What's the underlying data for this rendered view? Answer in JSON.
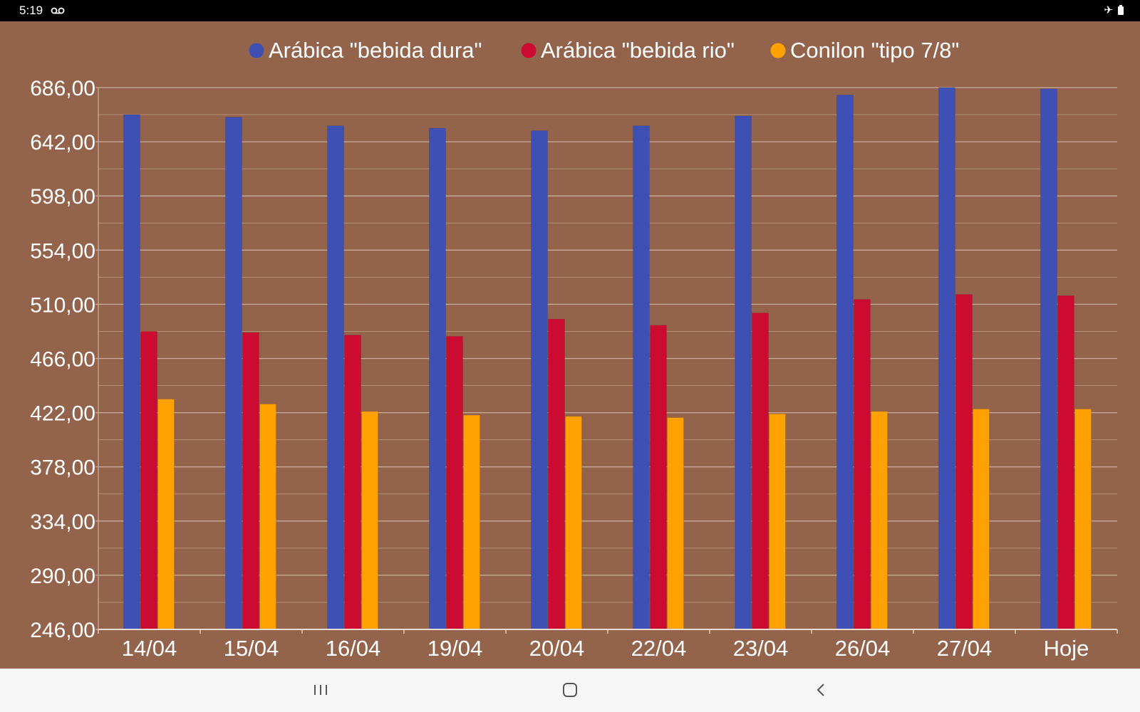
{
  "status_bar": {
    "time": "5:19",
    "icons": [
      "voicemail-icon",
      "airplane-icon",
      "battery-icon"
    ]
  },
  "nav_bar": {
    "buttons": [
      "recents-icon",
      "home-icon",
      "back-icon"
    ]
  },
  "colors": {
    "background": "#93644b",
    "gridline": "#c9ab98",
    "axis_text": "#ffffff"
  },
  "chart_data": {
    "type": "bar",
    "title": "",
    "xlabel": "",
    "ylabel": "",
    "legend_position": "top",
    "grid": true,
    "categories": [
      "14/04",
      "15/04",
      "16/04",
      "19/04",
      "20/04",
      "22/04",
      "23/04",
      "26/04",
      "27/04",
      "Hoje"
    ],
    "yticks": [
      "246,00",
      "290,00",
      "334,00",
      "378,00",
      "422,00",
      "466,00",
      "510,00",
      "554,00",
      "598,00",
      "642,00",
      "686,00"
    ],
    "ylim": [
      246,
      686
    ],
    "series": [
      {
        "name": "Arábica \"bebida dura\"",
        "color": "#3e50b4",
        "values": [
          664,
          662,
          655,
          653,
          651,
          655,
          663,
          680,
          686,
          685
        ]
      },
      {
        "name": "Arábica \"bebida rio\"",
        "color": "#cb0b2f",
        "values": [
          488,
          487,
          485,
          484,
          498,
          493,
          503,
          514,
          518,
          517
        ]
      },
      {
        "name": "Conilon \"tipo 7/8\"",
        "color": "#ffa100",
        "values": [
          433,
          429,
          423,
          420,
          419,
          418,
          421,
          423,
          425,
          425
        ]
      }
    ]
  }
}
